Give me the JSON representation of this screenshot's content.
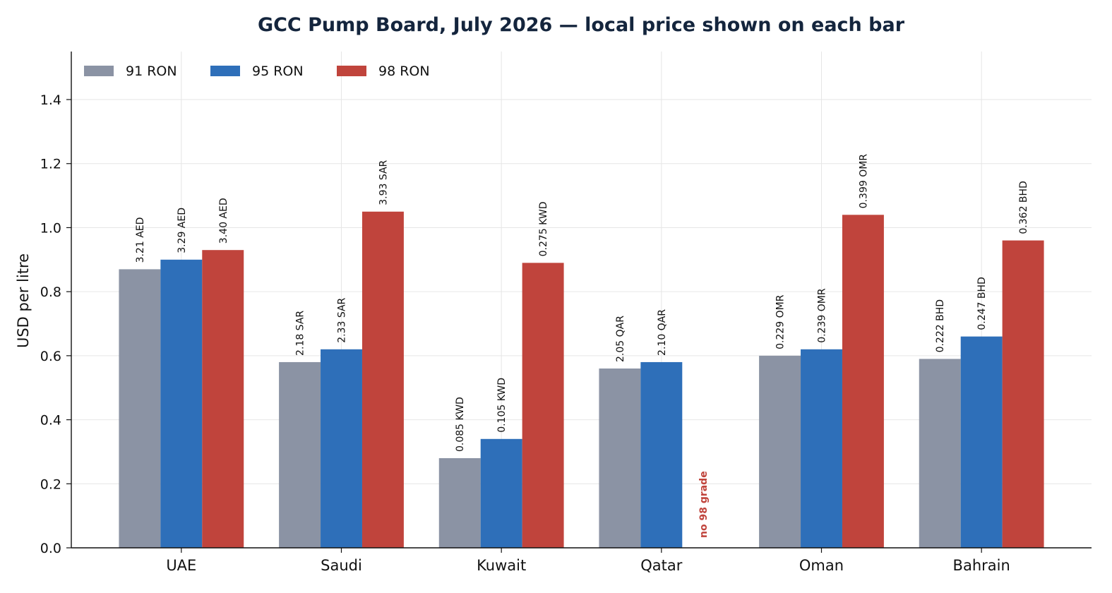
{
  "chart_data": {
    "type": "bar",
    "title": "GCC Pump Board, July 2026 — local price shown on each bar",
    "xlabel": "",
    "ylabel": "USD per litre",
    "ylim": [
      0,
      1.55
    ],
    "yticks": [
      "0.0",
      "0.2",
      "0.4",
      "0.6",
      "0.8",
      "1.0",
      "1.2",
      "1.4"
    ],
    "ytick_values": [
      0,
      0.2,
      0.4,
      0.6,
      0.8,
      1.0,
      1.2,
      1.4
    ],
    "grid": true,
    "legend_position": "top-left",
    "categories": [
      "UAE",
      "Saudi",
      "Kuwait",
      "Qatar",
      "Oman",
      "Bahrain"
    ],
    "series": [
      {
        "name": "91 RON",
        "color": "#8b93a4",
        "values": [
          0.87,
          0.58,
          0.28,
          0.56,
          0.6,
          0.59
        ],
        "labels": [
          "3.21 AED",
          "2.18 SAR",
          "0.085 KWD",
          "2.05 QAR",
          "0.229 OMR",
          "0.222 BHD"
        ]
      },
      {
        "name": "95 RON",
        "color": "#2e6fb9",
        "values": [
          0.9,
          0.62,
          0.34,
          0.58,
          0.62,
          0.66
        ],
        "labels": [
          "3.29 AED",
          "2.33 SAR",
          "0.105 KWD",
          "2.10 QAR",
          "0.239 OMR",
          "0.247 BHD"
        ]
      },
      {
        "name": "98 RON",
        "color": "#c0443c",
        "values": [
          0.93,
          1.05,
          0.89,
          null,
          1.04,
          0.96
        ],
        "labels": [
          "3.40 AED",
          "3.93 SAR",
          "0.275 KWD",
          "no 98 grade",
          "0.399 OMR",
          "0.362 BHD"
        ]
      }
    ]
  }
}
